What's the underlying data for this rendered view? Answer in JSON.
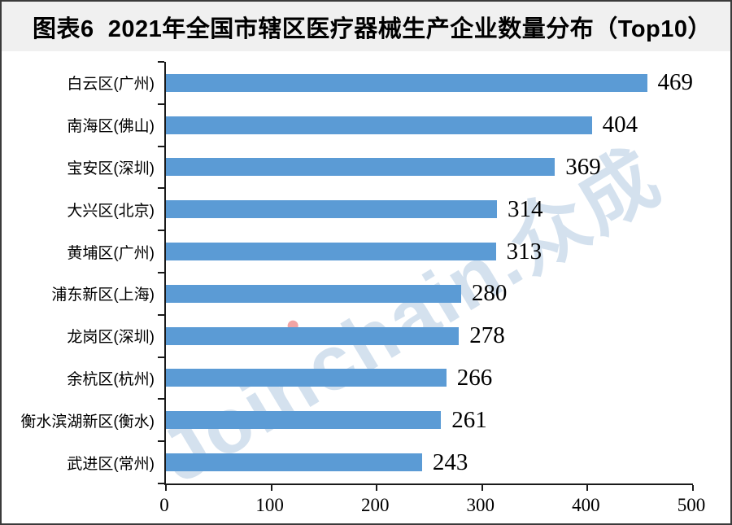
{
  "header": {
    "title": "图表6  2021年全国市辖区医疗器械生产企业数量分布（Top10）"
  },
  "watermark": {
    "text": "Joinchain.众成",
    "color": "#8dafd3",
    "accent_dot_color": "#e85a5a"
  },
  "colors": {
    "bar": "#5B9BD5",
    "axis": "#1a1a1a",
    "title_text": "#000000",
    "title_bar_background": "#f0f0f0",
    "frame_border": "#3a3a3a"
  },
  "chart_data": {
    "type": "bar",
    "orientation": "horizontal",
    "title": "图表6  2021年全国市辖区医疗器械生产企业数量分布（Top10）",
    "categories": [
      "白云区(广州)",
      "南海区(佛山)",
      "宝安区(深圳)",
      "大兴区(北京)",
      "黄埔区(广州)",
      "浦东新区(上海)",
      "龙岗区(深圳)",
      "余杭区(杭州)",
      "衡水滨湖新区(衡水)",
      "武进区(常州)"
    ],
    "values": [
      469,
      404,
      369,
      314,
      313,
      280,
      278,
      266,
      261,
      243
    ],
    "value_labels": [
      "469",
      "404",
      "369",
      "314",
      "313",
      "280",
      "278",
      "266",
      "261",
      "243"
    ],
    "xlabel": "",
    "ylabel": "",
    "xlim": [
      0,
      500
    ],
    "x_ticks": [
      "0",
      "100",
      "200",
      "300",
      "400",
      "500"
    ],
    "grid": false,
    "legend": "none",
    "bar_color": "#5B9BD5",
    "data_label_position": "outside-end"
  }
}
